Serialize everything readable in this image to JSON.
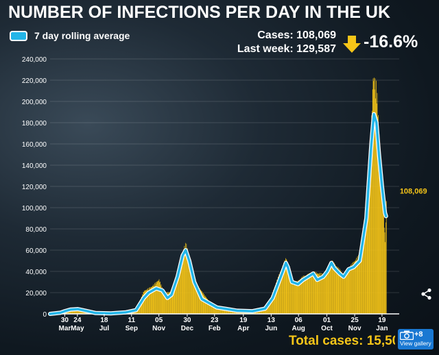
{
  "title": "NUMBER OF INFECTIONS PER DAY IN THE UK",
  "legend_label": "7 day rolling average",
  "stats": {
    "cases": "Cases: 108,069",
    "last_week": "Last week: 129,587",
    "change": "-16.6%"
  },
  "total_cases": "Total cases: 15,50",
  "gallery": {
    "count": "+8",
    "label": "View gallery"
  },
  "colors": {
    "bars": "#f5c518",
    "line": "#23b5e8",
    "line_outline": "#ffffff",
    "arrow": "#f5c518",
    "gallery": "#1a78d2"
  },
  "icons": [
    "camera-icon",
    "share-icon",
    "down-arrow-icon"
  ],
  "chart_data": {
    "type": "bar",
    "title": "NUMBER OF INFECTIONS PER DAY IN THE UK",
    "xlabel": "",
    "ylabel": "",
    "ylim": [
      0,
      240000
    ],
    "yticks": [
      0,
      20000,
      40000,
      60000,
      80000,
      100000,
      120000,
      140000,
      160000,
      180000,
      200000,
      220000,
      240000
    ],
    "ytick_labels": [
      "0",
      "20,000",
      "40,000",
      "60,000",
      "80,000",
      "100,000",
      "120,000",
      "140,000",
      "160,000",
      "180,000",
      "200,000",
      "220,000",
      "240,000"
    ],
    "xlim_days": [
      0,
      690
    ],
    "xticks": [
      {
        "day": 29,
        "day_label": "30",
        "month_label": "Mar"
      },
      {
        "day": 54,
        "day_label": "24",
        "month_label": "May"
      },
      {
        "day": 107,
        "day_label": "18",
        "month_label": "Jul"
      },
      {
        "day": 161,
        "day_label": "11",
        "month_label": "Sep"
      },
      {
        "day": 215,
        "day_label": "05",
        "month_label": "Nov"
      },
      {
        "day": 271,
        "day_label": "30",
        "month_label": "Dec"
      },
      {
        "day": 325,
        "day_label": "23",
        "month_label": "Feb"
      },
      {
        "day": 382,
        "day_label": "19",
        "month_label": "Apr"
      },
      {
        "day": 437,
        "day_label": "13",
        "month_label": "Jun"
      },
      {
        "day": 491,
        "day_label": "06",
        "month_label": "Aug"
      },
      {
        "day": 547,
        "day_label": "01",
        "month_label": "Oct"
      },
      {
        "day": 602,
        "day_label": "25",
        "month_label": "Nov"
      },
      {
        "day": 656,
        "day_label": "19",
        "month_label": "Jan"
      }
    ],
    "rolling_average": [
      [
        0,
        0
      ],
      [
        20,
        1000
      ],
      [
        29,
        2500
      ],
      [
        40,
        4000
      ],
      [
        55,
        4500
      ],
      [
        70,
        3000
      ],
      [
        90,
        800
      ],
      [
        120,
        500
      ],
      [
        150,
        1500
      ],
      [
        170,
        3500
      ],
      [
        185,
        15000
      ],
      [
        195,
        20000
      ],
      [
        210,
        24000
      ],
      [
        222,
        22000
      ],
      [
        232,
        15000
      ],
      [
        240,
        18000
      ],
      [
        252,
        35000
      ],
      [
        262,
        55000
      ],
      [
        268,
        60000
      ],
      [
        275,
        50000
      ],
      [
        285,
        30000
      ],
      [
        300,
        14000
      ],
      [
        330,
        6000
      ],
      [
        350,
        4500
      ],
      [
        370,
        3000
      ],
      [
        400,
        2500
      ],
      [
        425,
        5000
      ],
      [
        440,
        15000
      ],
      [
        452,
        30000
      ],
      [
        460,
        40000
      ],
      [
        466,
        48000
      ],
      [
        470,
        44000
      ],
      [
        478,
        30000
      ],
      [
        490,
        28000
      ],
      [
        500,
        32000
      ],
      [
        510,
        35000
      ],
      [
        520,
        38000
      ],
      [
        528,
        32000
      ],
      [
        540,
        35000
      ],
      [
        548,
        40000
      ],
      [
        556,
        48000
      ],
      [
        562,
        43000
      ],
      [
        572,
        38000
      ],
      [
        580,
        35000
      ],
      [
        590,
        42000
      ],
      [
        600,
        44000
      ],
      [
        612,
        50000
      ],
      [
        625,
        90000
      ],
      [
        635,
        160000
      ],
      [
        640,
        188000
      ],
      [
        645,
        180000
      ],
      [
        650,
        150000
      ],
      [
        656,
        120000
      ],
      [
        662,
        95000
      ],
      [
        664,
        92000
      ]
    ],
    "daily_cases": [
      [
        10,
        200
      ],
      [
        30,
        3500
      ],
      [
        50,
        5000
      ],
      [
        70,
        3500
      ],
      [
        100,
        600
      ],
      [
        140,
        1200
      ],
      [
        170,
        4500
      ],
      [
        185,
        22000
      ],
      [
        200,
        26000
      ],
      [
        215,
        33000
      ],
      [
        225,
        20000
      ],
      [
        245,
        22000
      ],
      [
        260,
        58000
      ],
      [
        268,
        68000
      ],
      [
        275,
        55000
      ],
      [
        290,
        28000
      ],
      [
        320,
        8000
      ],
      [
        360,
        4000
      ],
      [
        400,
        3000
      ],
      [
        430,
        8000
      ],
      [
        450,
        35000
      ],
      [
        466,
        54000
      ],
      [
        480,
        28000
      ],
      [
        500,
        36000
      ],
      [
        520,
        40000
      ],
      [
        540,
        38000
      ],
      [
        556,
        51000
      ],
      [
        580,
        38000
      ],
      [
        610,
        56000
      ],
      [
        630,
        120000
      ],
      [
        638,
        229000
      ],
      [
        645,
        218000
      ],
      [
        650,
        170000
      ],
      [
        657,
        110000
      ],
      [
        662,
        70000
      ],
      [
        664,
        108069
      ]
    ],
    "annotations": [
      {
        "text": "108,069",
        "day": 664,
        "value": 108069
      }
    ]
  }
}
